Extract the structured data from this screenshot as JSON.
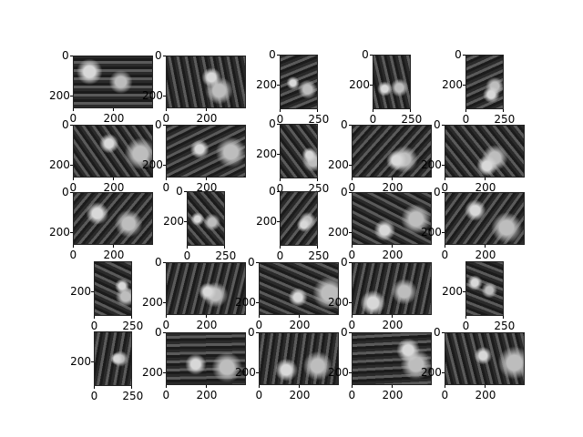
{
  "figure": {
    "rows": 5,
    "cols": 5,
    "panels": [
      {
        "w": 400,
        "h": 260,
        "xticks": [
          "0",
          "200"
        ],
        "yticks": [
          "0",
          "200"
        ]
      },
      {
        "w": 400,
        "h": 260,
        "xticks": [
          "0",
          "200"
        ],
        "yticks": [
          "0",
          "200"
        ]
      },
      {
        "w": 250,
        "h": 360,
        "xticks": [
          "0",
          "250"
        ],
        "yticks": [
          "0",
          "200"
        ]
      },
      {
        "w": 250,
        "h": 360,
        "xticks": [
          "0",
          "250"
        ],
        "yticks": [
          "0",
          "200"
        ]
      },
      {
        "w": 250,
        "h": 360,
        "xticks": [
          "0",
          "250"
        ],
        "yticks": [
          "0",
          "200"
        ]
      },
      {
        "w": 400,
        "h": 260,
        "xticks": [
          "0",
          "200"
        ],
        "yticks": [
          "0",
          "200"
        ]
      },
      {
        "w": 400,
        "h": 260,
        "xticks": [
          "0",
          "200"
        ],
        "yticks": [
          "0",
          "200"
        ]
      },
      {
        "w": 250,
        "h": 360,
        "xticks": [
          "0",
          "250"
        ],
        "yticks": [
          "0",
          "200"
        ]
      },
      {
        "w": 400,
        "h": 260,
        "xticks": [
          "0",
          "200"
        ],
        "yticks": [
          "0",
          "200"
        ]
      },
      {
        "w": 400,
        "h": 260,
        "xticks": [
          "0",
          "200"
        ],
        "yticks": [
          "0",
          "200"
        ]
      },
      {
        "w": 400,
        "h": 260,
        "xticks": [
          "0",
          "200"
        ],
        "yticks": [
          "0",
          "200"
        ]
      },
      {
        "w": 250,
        "h": 360,
        "xticks": [
          "0",
          "250"
        ],
        "yticks": [
          "0",
          "200"
        ]
      },
      {
        "w": 250,
        "h": 360,
        "xticks": [
          "0",
          "250"
        ],
        "yticks": [
          "0",
          "200"
        ]
      },
      {
        "w": 400,
        "h": 260,
        "xticks": [
          "0",
          "200"
        ],
        "yticks": [
          "0",
          "200"
        ]
      },
      {
        "w": 400,
        "h": 260,
        "xticks": [
          "0",
          "200"
        ],
        "yticks": [
          "0",
          "200"
        ]
      },
      {
        "w": 250,
        "h": 360,
        "xticks": [
          "0",
          "250"
        ],
        "yticks": [
          "200"
        ]
      },
      {
        "w": 400,
        "h": 260,
        "xticks": [
          "0",
          "200"
        ],
        "yticks": [
          "0",
          "200"
        ]
      },
      {
        "w": 400,
        "h": 260,
        "xticks": [
          "0",
          "200"
        ],
        "yticks": [
          "0",
          "200"
        ]
      },
      {
        "w": 400,
        "h": 260,
        "xticks": [
          "0",
          "200"
        ],
        "yticks": [
          "0",
          "200"
        ]
      },
      {
        "w": 250,
        "h": 360,
        "xticks": [
          "0",
          "250"
        ],
        "yticks": [
          "200"
        ]
      },
      {
        "w": 250,
        "h": 360,
        "xticks": [
          "0",
          "250"
        ],
        "yticks": [
          "200"
        ]
      },
      {
        "w": 400,
        "h": 260,
        "xticks": [
          "0",
          "200"
        ],
        "yticks": [
          "0",
          "200"
        ]
      },
      {
        "w": 400,
        "h": 260,
        "xticks": [
          "0",
          "200"
        ],
        "yticks": [
          "0",
          "200"
        ]
      },
      {
        "w": 400,
        "h": 260,
        "xticks": [
          "0",
          "200"
        ],
        "yticks": [
          "0",
          "200"
        ]
      },
      {
        "w": 400,
        "h": 260,
        "xticks": [
          "0",
          "200"
        ],
        "yticks": [
          "0",
          "200"
        ]
      }
    ]
  }
}
